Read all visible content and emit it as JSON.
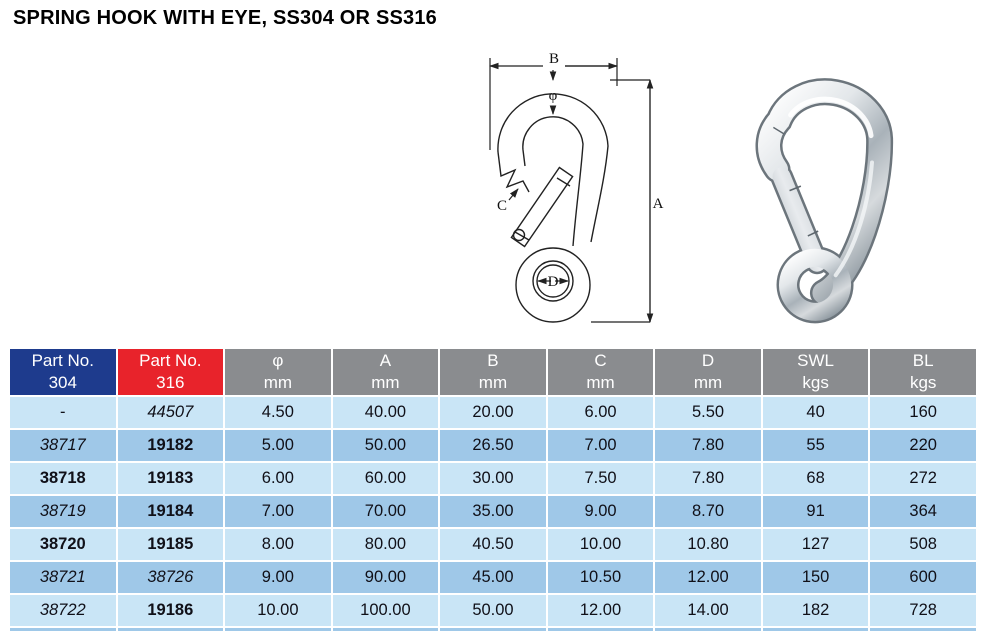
{
  "title": "SPRING HOOK WITH EYE, SS304 OR SS316",
  "diagram": {
    "labels": {
      "b": "B",
      "phi": "φ",
      "a": "A",
      "c": "C",
      "d": "D"
    }
  },
  "colors": {
    "header_navy": "#1e3b8d",
    "header_red": "#e8232b",
    "header_gray": "#8a8c8f",
    "row_light": "#c9e5f6",
    "row_dark": "#9fc8e8",
    "header_text": "#ffffff",
    "cell_text": "#101018"
  },
  "table": {
    "headers": [
      {
        "line1": "Part No.",
        "line2": "304",
        "bg": "#1e3b8d"
      },
      {
        "line1": "Part No.",
        "line2": "316",
        "bg": "#e8232b"
      },
      {
        "line1": "φ",
        "line2": "mm"
      },
      {
        "line1": "A",
        "line2": "mm"
      },
      {
        "line1": "B",
        "line2": "mm"
      },
      {
        "line1": "C",
        "line2": "mm"
      },
      {
        "line1": "D",
        "line2": "mm"
      },
      {
        "line1": "SWL",
        "line2": "kgs"
      },
      {
        "line1": "BL",
        "line2": "kgs"
      }
    ],
    "rows": [
      {
        "cells": [
          "-",
          "44507",
          "4.50",
          "40.00",
          "20.00",
          "6.00",
          "5.50",
          "40",
          "160"
        ],
        "styles": [
          "r",
          "i",
          "r",
          "r",
          "r",
          "r",
          "r",
          "r",
          "r"
        ]
      },
      {
        "cells": [
          "38717",
          "19182",
          "5.00",
          "50.00",
          "26.50",
          "7.00",
          "7.80",
          "55",
          "220"
        ],
        "styles": [
          "i",
          "b",
          "r",
          "r",
          "r",
          "r",
          "r",
          "r",
          "r"
        ]
      },
      {
        "cells": [
          "38718",
          "19183",
          "6.00",
          "60.00",
          "30.00",
          "7.50",
          "7.80",
          "68",
          "272"
        ],
        "styles": [
          "b",
          "b",
          "r",
          "r",
          "r",
          "r",
          "r",
          "r",
          "r"
        ]
      },
      {
        "cells": [
          "38719",
          "19184",
          "7.00",
          "70.00",
          "35.00",
          "9.00",
          "8.70",
          "91",
          "364"
        ],
        "styles": [
          "i",
          "b",
          "r",
          "r",
          "r",
          "r",
          "r",
          "r",
          "r"
        ]
      },
      {
        "cells": [
          "38720",
          "19185",
          "8.00",
          "80.00",
          "40.50",
          "10.00",
          "10.80",
          "127",
          "508"
        ],
        "styles": [
          "b",
          "b",
          "r",
          "r",
          "r",
          "r",
          "r",
          "r",
          "r"
        ]
      },
      {
        "cells": [
          "38721",
          "38726",
          "9.00",
          "90.00",
          "45.00",
          "10.50",
          "12.00",
          "150",
          "600"
        ],
        "styles": [
          "i",
          "i",
          "r",
          "r",
          "r",
          "r",
          "r",
          "r",
          "r"
        ]
      },
      {
        "cells": [
          "38722",
          "19186",
          "10.00",
          "100.00",
          "50.00",
          "12.00",
          "14.00",
          "182",
          "728"
        ],
        "styles": [
          "i",
          "b",
          "r",
          "r",
          "r",
          "r",
          "r",
          "r",
          "r"
        ]
      }
    ]
  }
}
